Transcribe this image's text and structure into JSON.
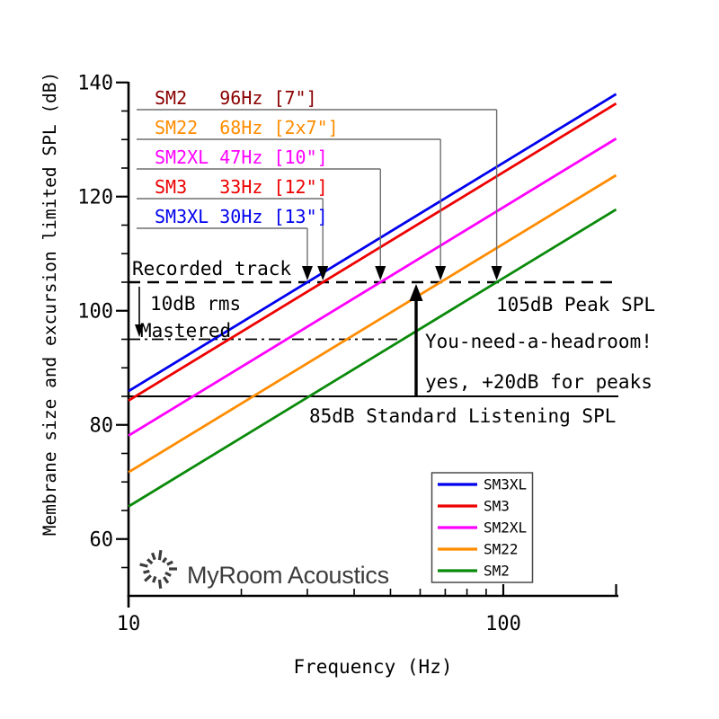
{
  "chart_data": {
    "type": "line",
    "title": "",
    "xlabel": "Frequency (Hz)",
    "ylabel": "Membrane size and excursion limited SPL (dB)",
    "x_scale": "log",
    "xlim": [
      10,
      200
    ],
    "ylim": [
      50,
      140
    ],
    "x_major_ticks": [
      10,
      100
    ],
    "x_minor_ticks": [
      20,
      30,
      40,
      50,
      60,
      70,
      80,
      90
    ],
    "x_edge_tick": 200,
    "y_major_ticks": [
      60,
      80,
      100,
      120,
      140
    ],
    "y_minor_step": 5,
    "grid": false,
    "model": "SPL(f) = 105 + 40*log10(f / f0_hz) ; excursion-limited slope 40 dB/decade (12 dB/octave)",
    "crossing_reference_db": 105,
    "slope_db_per_decade": 40,
    "series": [
      {
        "name": "SM3XL",
        "color": "#0000EE",
        "f0_hz": 30,
        "driver": "13\"",
        "spl_at_10hz": 85.9,
        "spl_at_200hz": 137.9
      },
      {
        "name": "SM3",
        "color": "#EE0000",
        "f0_hz": 33,
        "driver": "12\"",
        "spl_at_10hz": 84.3,
        "spl_at_200hz": 136.3
      },
      {
        "name": "SM2XL",
        "color": "#FF00FF",
        "f0_hz": 47,
        "driver": "10\"",
        "spl_at_10hz": 78.1,
        "spl_at_200hz": 130.2
      },
      {
        "name": "SM22",
        "color": "#FF8C00",
        "f0_hz": 68,
        "driver": "2x7\"",
        "spl_at_10hz": 71.7,
        "spl_at_200hz": 123.7
      },
      {
        "name": "SM2",
        "color": "#0A8A0A",
        "f0_hz": 96,
        "driver": "7\"",
        "spl_at_10hz": 65.7,
        "spl_at_200hz": 117.7
      }
    ],
    "reference_lines": [
      {
        "label": "Recorded track",
        "value_db": 105,
        "style": "dashed"
      },
      {
        "label": "Mastered",
        "value_db": 95,
        "style": "dash-dot"
      },
      {
        "label": "85dB Standard Listening SPL",
        "value_db": 85,
        "style": "solid"
      }
    ],
    "callouts": [
      {
        "text": "SM2   96Hz [7\"]",
        "color": "#8B0000",
        "target_hz": 96
      },
      {
        "text": "SM22  68Hz [2x7\"]",
        "color": "#FF8C00",
        "target_hz": 68
      },
      {
        "text": "SM2XL 47Hz [10\"]",
        "color": "#FF00FF",
        "target_hz": 47
      },
      {
        "text": "SM3   33Hz [12\"]",
        "color": "#EE0000",
        "target_hz": 33
      },
      {
        "text": "SM3XL 30Hz [13\"]",
        "color": "#0000EE",
        "target_hz": 30
      }
    ],
    "annotations": {
      "recorded_track": "Recorded track",
      "rms": "10dB rms",
      "mastered": "Mastered",
      "peak_spl": "105dB Peak SPL",
      "headroom": "You-need-a-headroom!",
      "peaks": "yes, +20dB for peaks",
      "listening": "85dB Standard Listening SPL"
    },
    "legend": {
      "position": "bottom-right-inside",
      "entries": [
        "SM3XL",
        "SM3",
        "SM2XL",
        "SM22",
        "SM2"
      ]
    }
  },
  "branding": {
    "logo_text": "MyRoom Acoustics"
  }
}
